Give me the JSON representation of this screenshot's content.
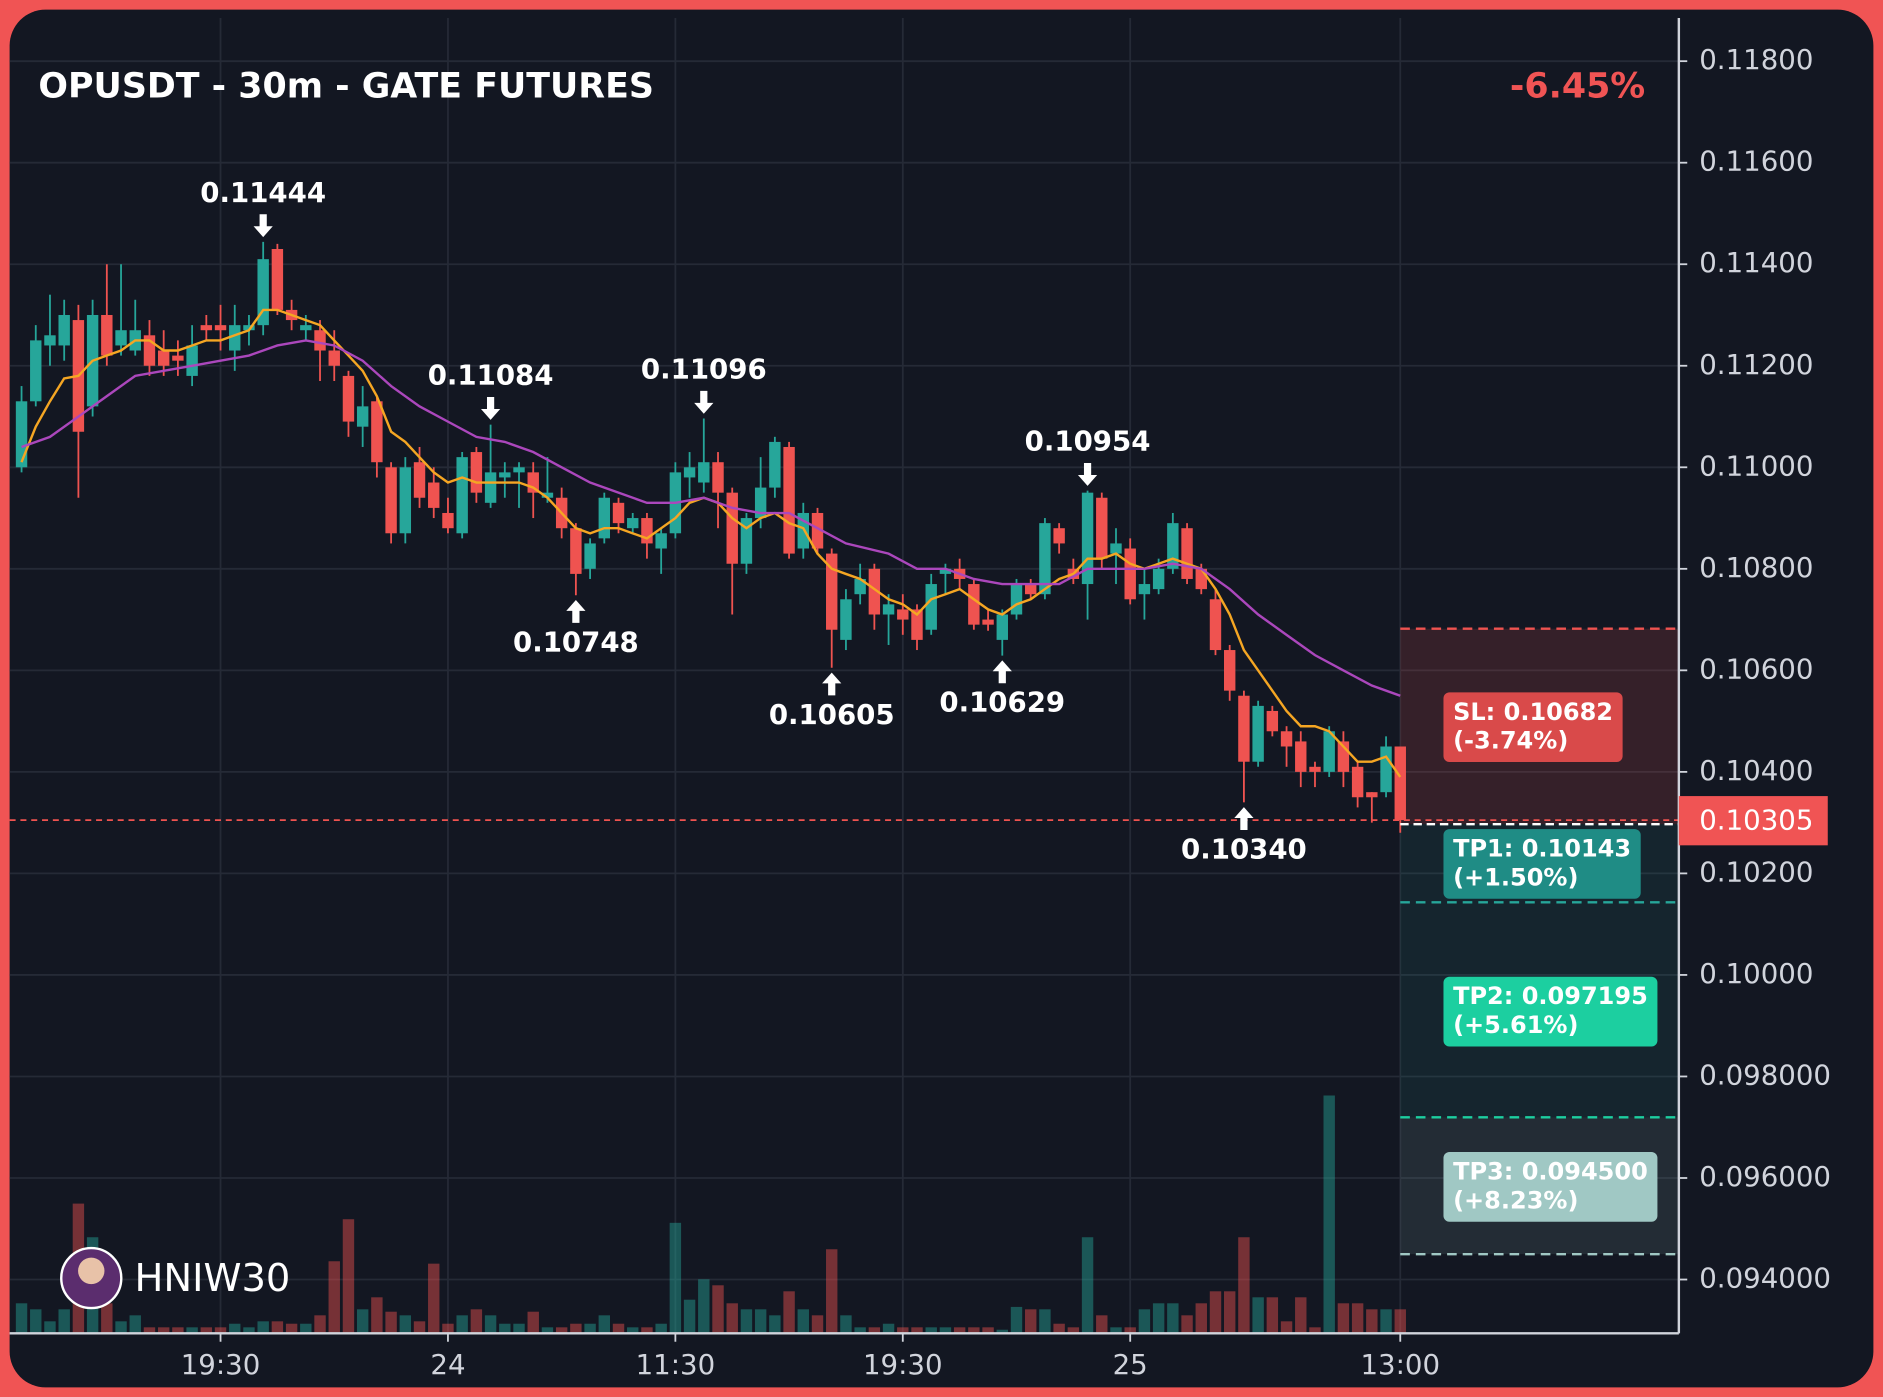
{
  "chart_data": {
    "type": "candlestick",
    "title": "OPUSDT - 30m - GATE FUTURES",
    "change": "-6.45%",
    "change_color": "#f05454",
    "watermark": "HNIW30",
    "xlim": [
      -0.84,
      116.6
    ],
    "xticks": [
      {
        "value": 14,
        "label": "19:30"
      },
      {
        "value": 30,
        "label": "24"
      },
      {
        "value": 46,
        "label": "11:30"
      },
      {
        "value": 62,
        "label": "19:30"
      },
      {
        "value": 78,
        "label": "25"
      },
      {
        "value": 97,
        "label": "13:00"
      }
    ],
    "ylim": [
      0.09294,
      0.11885
    ],
    "yticks": [
      {
        "value": 0.118,
        "label": "0.11800"
      },
      {
        "value": 0.116,
        "label": "0.11600"
      },
      {
        "value": 0.114,
        "label": "0.11400"
      },
      {
        "value": 0.112,
        "label": "0.11200"
      },
      {
        "value": 0.11,
        "label": "0.11000"
      },
      {
        "value": 0.108,
        "label": "0.10800"
      },
      {
        "value": 0.106,
        "label": "0.10600"
      },
      {
        "value": 0.104,
        "label": "0.10400"
      },
      {
        "value": 0.102,
        "label": "0.10200"
      },
      {
        "value": 0.1,
        "label": "0.10000"
      },
      {
        "value": 0.098,
        "label": "0.098000"
      },
      {
        "value": 0.096,
        "label": "0.096000"
      },
      {
        "value": 0.094,
        "label": "0.094000"
      }
    ],
    "grid": true,
    "up_color": "#26a69a",
    "down_color": "#ef5350",
    "candles": {
      "open": [
        0.11,
        0.1113,
        0.1124,
        0.1124,
        0.1129,
        0.1112,
        0.113,
        0.1124,
        0.1123,
        0.1126,
        0.1123,
        0.1122,
        0.1118,
        0.1128,
        0.1128,
        0.1123,
        0.1127,
        0.1128,
        0.1143,
        0.1131,
        0.1127,
        0.1127,
        0.1123,
        0.1118,
        0.1108,
        0.1113,
        0.11,
        0.1087,
        0.1101,
        0.1097,
        0.1091,
        0.1087,
        0.1103,
        0.1093,
        0.1098,
        0.1099,
        0.1099,
        0.1094,
        0.1094,
        0.1088,
        0.108,
        0.1086,
        0.1093,
        0.1088,
        0.109,
        0.1084,
        0.1087,
        0.1098,
        0.1097,
        0.1101,
        0.1095,
        0.1081,
        0.109,
        0.1096,
        0.1104,
        0.1084,
        0.1091,
        0.1083,
        0.1066,
        0.1075,
        0.108,
        0.1071,
        0.1072,
        0.1072,
        0.1068,
        0.1079,
        0.108,
        0.1077,
        0.107,
        0.1066,
        0.1071,
        0.1077,
        0.1075,
        0.1088,
        0.108,
        0.1077,
        0.1094,
        0.1083,
        0.1084,
        0.1075,
        0.1076,
        0.108,
        0.1088,
        0.108,
        0.1074,
        0.1064,
        0.1055,
        0.1042,
        0.1052,
        0.1048,
        0.1046,
        0.1041,
        0.104,
        0.1046,
        0.1041,
        0.1036,
        0.1036,
        0.1045
      ],
      "high": [
        0.1116,
        0.1128,
        0.1134,
        0.1133,
        0.1132,
        0.1133,
        0.114,
        0.114,
        0.1133,
        0.1129,
        0.1127,
        0.1125,
        0.1128,
        0.113,
        0.1132,
        0.1132,
        0.113,
        0.11444,
        0.1144,
        0.1133,
        0.113,
        0.1129,
        0.1127,
        0.1119,
        0.1116,
        0.1114,
        0.1101,
        0.1102,
        0.1104,
        0.11,
        0.1094,
        0.1103,
        0.1104,
        0.11084,
        0.1101,
        0.1101,
        0.1101,
        0.1102,
        0.1096,
        0.1089,
        0.1086,
        0.1095,
        0.1094,
        0.1091,
        0.1091,
        0.1088,
        0.1101,
        0.1103,
        0.11096,
        0.1103,
        0.1096,
        0.1091,
        0.1102,
        0.1106,
        0.1105,
        0.1093,
        0.1092,
        0.1084,
        0.1076,
        0.1081,
        0.1081,
        0.1075,
        0.1075,
        0.1073,
        0.1079,
        0.1081,
        0.1082,
        0.1078,
        0.1072,
        0.1072,
        0.1078,
        0.1078,
        0.109,
        0.1089,
        0.1082,
        0.10954,
        0.1095,
        0.1088,
        0.1086,
        0.108,
        0.1082,
        0.1091,
        0.1089,
        0.1081,
        0.1076,
        0.1065,
        0.1056,
        0.1054,
        0.1053,
        0.1049,
        0.1048,
        0.1042,
        0.1049,
        0.1048,
        0.1042,
        0.1036,
        0.1047,
        0.1045
      ],
      "low": [
        0.1099,
        0.1112,
        0.112,
        0.1121,
        0.1094,
        0.111,
        0.112,
        0.1122,
        0.1122,
        0.1118,
        0.1118,
        0.1118,
        0.1116,
        0.1125,
        0.1123,
        0.1119,
        0.1124,
        0.1126,
        0.113,
        0.1127,
        0.1125,
        0.1117,
        0.1117,
        0.1106,
        0.1104,
        0.1098,
        0.1085,
        0.1085,
        0.1092,
        0.109,
        0.1087,
        0.1086,
        0.1093,
        0.1092,
        0.1094,
        0.1092,
        0.109,
        0.1093,
        0.1086,
        0.10748,
        0.1078,
        0.1085,
        0.1087,
        0.1087,
        0.1082,
        0.1079,
        0.1086,
        0.1094,
        0.1095,
        0.1088,
        0.1071,
        0.1079,
        0.1088,
        0.1094,
        0.1082,
        0.1082,
        0.1083,
        0.10605,
        0.1064,
        0.1073,
        0.1068,
        0.1065,
        0.1067,
        0.1064,
        0.1067,
        0.1075,
        0.1076,
        0.1068,
        0.10678,
        0.10629,
        0.107,
        0.1074,
        0.1074,
        0.1083,
        0.1077,
        0.107,
        0.108,
        0.1077,
        0.1073,
        0.107,
        0.1075,
        0.1079,
        0.1077,
        0.1075,
        0.1063,
        0.1054,
        0.1034,
        0.1041,
        0.1047,
        0.1041,
        0.1037,
        0.1037,
        0.1039,
        0.1037,
        0.1033,
        0.103,
        0.1035,
        0.1028
      ],
      "close": [
        0.1113,
        0.1125,
        0.1126,
        0.113,
        0.1107,
        0.113,
        0.1122,
        0.1127,
        0.1127,
        0.112,
        0.112,
        0.1121,
        0.1124,
        0.1127,
        0.1127,
        0.1128,
        0.1128,
        0.1141,
        0.1131,
        0.1129,
        0.1128,
        0.1123,
        0.112,
        0.1109,
        0.1112,
        0.1101,
        0.1087,
        0.11,
        0.1094,
        0.1092,
        0.1088,
        0.1102,
        0.1095,
        0.1099,
        0.1099,
        0.11,
        0.1095,
        0.1095,
        0.1088,
        0.1079,
        0.1085,
        0.1094,
        0.1089,
        0.109,
        0.1085,
        0.1087,
        0.1099,
        0.11,
        0.1101,
        0.1095,
        0.1081,
        0.109,
        0.1096,
        0.1105,
        0.1083,
        0.1091,
        0.1084,
        0.1068,
        0.1074,
        0.1078,
        0.1071,
        0.1073,
        0.107,
        0.1066,
        0.1077,
        0.108,
        0.1078,
        0.1069,
        0.1069,
        0.1071,
        0.1077,
        0.1075,
        0.1089,
        0.1085,
        0.1078,
        0.1095,
        0.1082,
        0.1085,
        0.1074,
        0.1077,
        0.108,
        0.1089,
        0.1078,
        0.1076,
        0.1064,
        0.1056,
        0.1042,
        0.1053,
        0.1048,
        0.1045,
        0.104,
        0.104,
        0.1048,
        0.104,
        0.1035,
        0.1035,
        0.1045,
        0.10305
      ]
    },
    "volume": [
      25,
      20,
      10,
      20,
      108,
      80,
      25,
      10,
      15,
      5,
      5,
      5,
      5,
      5,
      5,
      8,
      5,
      10,
      10,
      8,
      8,
      15,
      60,
      95,
      20,
      30,
      18,
      15,
      10,
      58,
      8,
      15,
      20,
      15,
      8,
      8,
      18,
      5,
      5,
      8,
      8,
      15,
      8,
      5,
      5,
      8,
      92,
      28,
      45,
      40,
      25,
      20,
      20,
      15,
      35,
      20,
      15,
      70,
      15,
      5,
      5,
      8,
      5,
      5,
      5,
      5,
      5,
      5,
      5,
      3,
      22,
      20,
      20,
      8,
      5,
      80,
      15,
      5,
      5,
      20,
      25,
      25,
      15,
      25,
      35,
      35,
      80,
      30,
      30,
      10,
      30,
      5,
      198,
      25,
      25,
      20,
      20,
      20
    ],
    "moving_averages": [
      {
        "color": "#f5a623",
        "values": [
          0.1101,
          0.1108,
          0.1113,
          0.11175,
          0.1118,
          0.1121,
          0.1122,
          0.1123,
          0.1125,
          0.1125,
          0.1123,
          0.1123,
          0.1124,
          0.1125,
          0.1125,
          0.1126,
          0.1127,
          0.1131,
          0.1131,
          0.113,
          0.1129,
          0.1128,
          0.1125,
          0.1122,
          0.1119,
          0.1114,
          0.1107,
          0.1105,
          0.1102,
          0.1099,
          0.1097,
          0.1098,
          0.1097,
          0.1097,
          0.1097,
          0.1097,
          0.1096,
          0.1094,
          0.1091,
          0.1088,
          0.1087,
          0.1088,
          0.1088,
          0.1087,
          0.1086,
          0.1088,
          0.109,
          0.1093,
          0.1094,
          0.1093,
          0.109,
          0.1088,
          0.109,
          0.1091,
          0.1089,
          0.1088,
          0.1083,
          0.108,
          0.1079,
          0.1078,
          0.1076,
          0.1074,
          0.1073,
          0.1071,
          0.1074,
          0.1075,
          0.1076,
          0.1074,
          0.1072,
          0.1071,
          0.1073,
          0.1074,
          0.1076,
          0.1078,
          0.1079,
          0.1082,
          0.1082,
          0.1083,
          0.1081,
          0.108,
          0.1081,
          0.1082,
          0.1081,
          0.108,
          0.1076,
          0.1071,
          0.1064,
          0.106,
          0.1056,
          0.1052,
          0.1049,
          0.1049,
          0.1048,
          0.1045,
          0.1042,
          0.1042,
          0.1043,
          0.1039
        ]
      },
      {
        "color": "#ab47bc",
        "x": [
          0,
          2,
          4,
          6,
          8,
          10,
          12,
          14,
          16,
          18,
          20,
          22,
          24,
          26,
          28,
          30,
          32,
          34,
          36,
          38,
          40,
          42,
          44,
          46,
          48,
          50,
          52,
          54,
          56,
          58,
          61,
          63,
          65,
          67,
          69,
          71,
          73,
          75,
          77,
          79,
          81,
          83,
          85,
          87,
          89,
          91,
          93,
          95,
          97
        ],
        "values": [
          0.1104,
          0.1106,
          0.111,
          0.1114,
          0.1118,
          0.1119,
          0.112,
          0.1121,
          0.1122,
          0.1124,
          0.1125,
          0.1124,
          0.1121,
          0.1116,
          0.1112,
          0.1109,
          0.1106,
          0.1105,
          0.1103,
          0.11,
          0.1097,
          0.1095,
          0.1093,
          0.1093,
          0.1094,
          0.1092,
          0.1091,
          0.1091,
          0.1088,
          0.1085,
          0.1083,
          0.108,
          0.108,
          0.1078,
          0.1077,
          0.1077,
          0.1077,
          0.108,
          0.108,
          0.108,
          0.1081,
          0.108,
          0.1076,
          0.1071,
          0.1067,
          0.1063,
          0.106,
          0.1057,
          0.1055
        ]
      }
    ],
    "pivots": [
      {
        "type": "high",
        "x": 17,
        "label": "0.11444"
      },
      {
        "type": "high",
        "x": 33,
        "label": "0.11084"
      },
      {
        "type": "high",
        "x": 48,
        "label": "0.11096"
      },
      {
        "type": "high",
        "x": 75,
        "label": "0.10954"
      },
      {
        "type": "low",
        "x": 39,
        "label": "0.10748"
      },
      {
        "type": "low",
        "x": 57,
        "label": "0.10605"
      },
      {
        "type": "low",
        "x": 69,
        "label": "0.10629"
      },
      {
        "type": "low",
        "x": 86,
        "label": "0.10340"
      }
    ],
    "last_price": {
      "value": 0.10305,
      "label": "0.10305"
    },
    "entry": 0.10297,
    "levels": [
      {
        "value": 0.10682,
        "label": "SL: 0.10682",
        "note": "(-3.74%)",
        "color": "#ef5350",
        "box_color": "#d94a4a"
      },
      {
        "value": 0.10143,
        "label": "TP1: 0.10143",
        "note": "(+1.50%)",
        "color": "#26a69a",
        "box_color": "#1f8c85"
      },
      {
        "value": 0.097195,
        "label": "TP2: 0.097195",
        "note": "(+5.61%)",
        "color": "#1ccfa0",
        "box_color": "#1ccfa0"
      },
      {
        "value": 0.0945,
        "label": "TP3: 0.094500",
        "note": "(+8.23%)",
        "color": "#a0c8c4",
        "box_color": "#a0c8c4"
      }
    ]
  }
}
